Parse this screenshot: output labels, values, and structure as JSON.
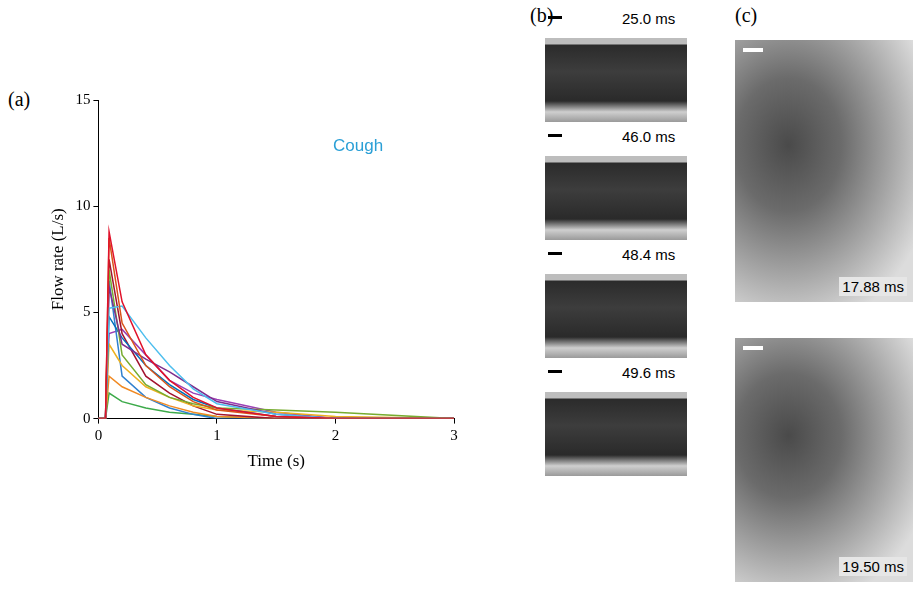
{
  "chart_data": {
    "type": "line",
    "panel": "(a)",
    "annotation": "Cough",
    "x_label": "Time (s)",
    "y_label": "Flow rate (L/s)",
    "xlim": [
      0,
      3
    ],
    "xticks": [
      0,
      1,
      2,
      3
    ],
    "ylim": [
      0,
      15
    ],
    "yticks": [
      0,
      5,
      10,
      15
    ],
    "grid": false,
    "x": [
      0,
      0.06,
      0.09,
      0.2,
      0.4,
      0.6,
      0.8,
      1.0,
      1.5,
      2.0,
      3.0
    ],
    "series": [
      {
        "color": "#e0122b",
        "values": [
          0,
          0,
          8.8,
          5.5,
          3.0,
          1.8,
          1.0,
          0.5,
          0.1,
          0,
          0
        ]
      },
      {
        "color": "#D95319",
        "values": [
          0,
          0,
          8.5,
          4.5,
          2.5,
          1.5,
          0.8,
          0.4,
          0.1,
          0,
          0
        ]
      },
      {
        "color": "#4DBEEE",
        "values": [
          0,
          0,
          5.2,
          5.3,
          3.8,
          2.5,
          1.4,
          0.7,
          0.2,
          0,
          0
        ]
      },
      {
        "color": "#7E2F8E",
        "values": [
          0,
          0,
          6.2,
          3.5,
          2.8,
          2.2,
          1.5,
          0.8,
          0.2,
          0,
          0
        ]
      },
      {
        "color": "#77AC30",
        "values": [
          0,
          0,
          7.0,
          3.0,
          1.6,
          1.0,
          0.7,
          0.5,
          0.4,
          0.3,
          0
        ]
      },
      {
        "color": "#0072BD",
        "values": [
          0,
          0,
          4.8,
          3.8,
          2.5,
          1.6,
          0.9,
          0.5,
          0.1,
          0,
          0
        ]
      },
      {
        "color": "#EDB120",
        "values": [
          0,
          0,
          3.5,
          2.5,
          1.5,
          1.0,
          0.6,
          0.4,
          0.3,
          0.1,
          0
        ]
      },
      {
        "color": "#A2142F",
        "values": [
          0,
          0,
          7.5,
          4.0,
          2.0,
          1.2,
          0.6,
          0.2,
          0,
          0,
          0
        ]
      },
      {
        "color": "#F08A24",
        "values": [
          0,
          0,
          2.0,
          1.5,
          1.0,
          0.6,
          0.3,
          0.1,
          0,
          0,
          0
        ]
      },
      {
        "color": "#2F80D0",
        "values": [
          0,
          0,
          6.5,
          2.0,
          1.0,
          0.5,
          0.2,
          0,
          0,
          0,
          0
        ]
      },
      {
        "color": "#9B3FB5",
        "values": [
          0,
          0,
          4.0,
          4.2,
          3.0,
          1.8,
          1.2,
          0.9,
          0.3,
          0,
          0
        ]
      },
      {
        "color": "#3DAA4A",
        "values": [
          0,
          0,
          1.2,
          0.8,
          0.5,
          0.3,
          0.2,
          0.1,
          0,
          0,
          0
        ]
      }
    ]
  },
  "photo_panels": [
    {
      "panel": "(b)",
      "frames": [
        "25.0 ms",
        "46.0 ms",
        "48.4 ms",
        "49.6 ms"
      ]
    },
    {
      "panel": "(c)",
      "frames": [
        "17.88 ms",
        "19.50 ms"
      ]
    }
  ]
}
